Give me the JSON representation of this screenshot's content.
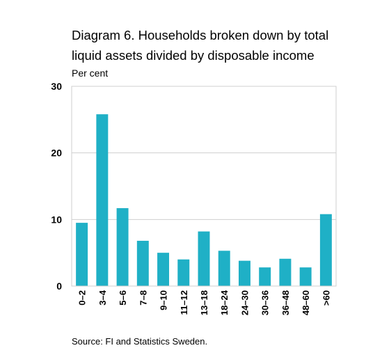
{
  "chart_data": {
    "type": "bar",
    "title": "Diagram 6. Households broken down by total liquid assets divided by disposable income",
    "unit_label": "Per cent",
    "source": "Source: FI and Statistics Sweden.",
    "categories": [
      "0–2",
      "3–4",
      "5–6",
      "7–8",
      "9–10",
      "11–12",
      "13–18",
      "18–24",
      "24–30",
      "30–36",
      "36–48",
      "48–60",
      ">60"
    ],
    "values": [
      9.5,
      25.8,
      11.7,
      6.8,
      5.0,
      4.0,
      8.2,
      5.3,
      3.8,
      2.8,
      4.1,
      2.8,
      10.8
    ],
    "ylim": [
      0,
      30
    ],
    "yticks": [
      0,
      10,
      20,
      30
    ],
    "grid": true,
    "bar_color": "#1FB0C6"
  }
}
